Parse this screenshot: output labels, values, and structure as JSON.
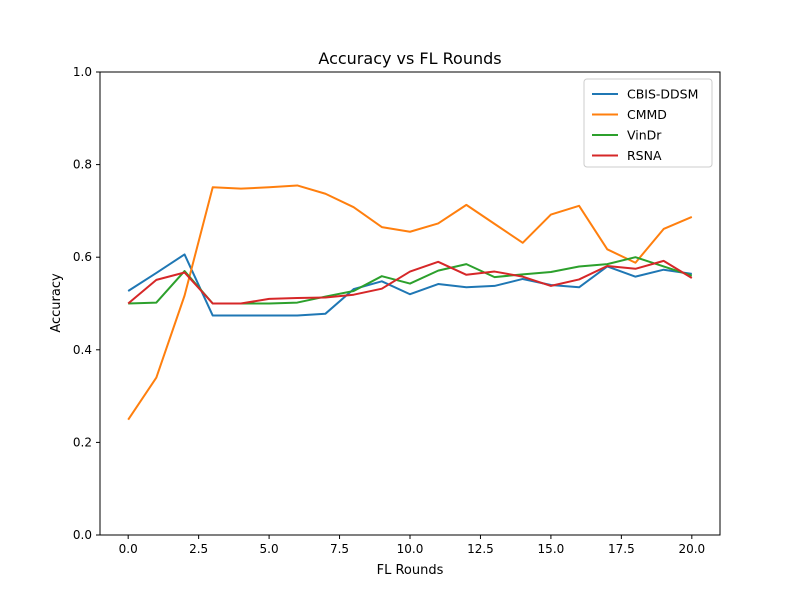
{
  "chart_data": {
    "type": "line",
    "title": "Accuracy vs FL Rounds",
    "xlabel": "FL Rounds",
    "ylabel": "Accuracy",
    "xlim": [
      -1,
      21
    ],
    "ylim": [
      0,
      1
    ],
    "xticks": [
      0,
      2.5,
      5,
      7.5,
      10,
      12.5,
      15,
      17.5,
      20
    ],
    "xtick_labels": [
      "0.0",
      "2.5",
      "5.0",
      "7.5",
      "10.0",
      "12.5",
      "15.0",
      "17.5",
      "20.0"
    ],
    "yticks": [
      0,
      0.2,
      0.4,
      0.6,
      0.8,
      1.0
    ],
    "ytick_labels": [
      "0.0",
      "0.2",
      "0.4",
      "0.6",
      "0.8",
      "1.0"
    ],
    "grid": false,
    "legend_position": "top-right",
    "x": [
      0,
      1,
      2,
      3,
      4,
      5,
      6,
      7,
      8,
      9,
      10,
      11,
      12,
      13,
      14,
      15,
      16,
      17,
      18,
      19,
      20
    ],
    "series": [
      {
        "name": "CBIS-DDSM",
        "color": "#1f77b4",
        "values": [
          0.527,
          0.566,
          0.606,
          0.474,
          0.474,
          0.474,
          0.474,
          0.478,
          0.531,
          0.548,
          0.52,
          0.542,
          0.535,
          0.538,
          0.553,
          0.54,
          0.535,
          0.58,
          0.558,
          0.573,
          0.564
        ]
      },
      {
        "name": "CMMD",
        "color": "#ff7f0e",
        "values": [
          0.249,
          0.34,
          0.517,
          0.751,
          0.748,
          0.751,
          0.755,
          0.737,
          0.708,
          0.665,
          0.655,
          0.673,
          0.713,
          0.672,
          0.631,
          0.692,
          0.711,
          0.617,
          0.588,
          0.661,
          0.687
        ]
      },
      {
        "name": "VinDr",
        "color": "#2ca02c",
        "values": [
          0.5,
          0.502,
          0.57,
          0.5,
          0.5,
          0.5,
          0.502,
          0.515,
          0.527,
          0.559,
          0.543,
          0.571,
          0.585,
          0.557,
          0.563,
          0.568,
          0.58,
          0.585,
          0.6,
          0.58,
          0.56
        ]
      },
      {
        "name": "RSNA",
        "color": "#d62728",
        "values": [
          0.5,
          0.551,
          0.567,
          0.5,
          0.5,
          0.51,
          0.512,
          0.513,
          0.519,
          0.532,
          0.569,
          0.59,
          0.562,
          0.569,
          0.558,
          0.538,
          0.552,
          0.581,
          0.575,
          0.592,
          0.555
        ]
      }
    ]
  }
}
